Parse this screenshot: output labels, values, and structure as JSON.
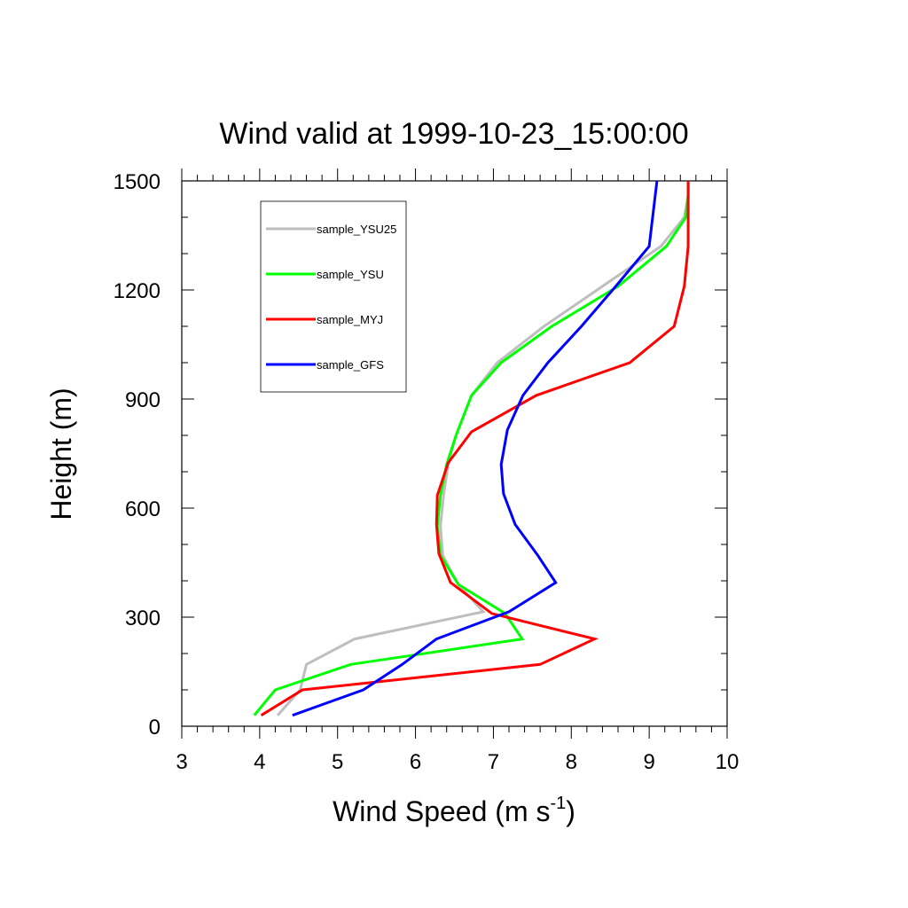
{
  "chart_data": {
    "type": "line",
    "title": "Wind valid at 1999-10-23_15:00:00",
    "xlabel": {
      "text": "Wind Speed (m s",
      "superscript": "-1",
      "close": ")"
    },
    "ylabel": "Height (m)",
    "xlim": [
      3,
      10
    ],
    "ylim": [
      0,
      1500
    ],
    "x_ticks": [
      3,
      4,
      5,
      6,
      7,
      8,
      9,
      10
    ],
    "y_ticks": [
      0,
      300,
      600,
      900,
      1200,
      1500
    ],
    "x_minor_step": 0.2,
    "y_minor_step": 100,
    "legend": {
      "position": "top-left"
    },
    "grid": false,
    "series": [
      {
        "name": "sample_YSU25",
        "color": "#bebebe",
        "x": [
          4.23,
          4.52,
          4.6,
          5.22,
          6.87,
          6.55,
          6.35,
          6.32,
          6.36,
          6.42,
          6.52,
          6.72,
          7.05,
          7.65,
          8.4,
          9.15,
          9.45,
          9.5,
          9.5
        ],
        "y": [
          30,
          100,
          170,
          240,
          315,
          390,
          470,
          550,
          635,
          720,
          800,
          910,
          1000,
          1100,
          1210,
          1320,
          1400,
          1460,
          1500
        ]
      },
      {
        "name": "sample_YSU",
        "color": "#00ff00",
        "x": [
          3.93,
          4.2,
          5.17,
          7.37,
          7.15,
          6.55,
          6.32,
          6.28,
          6.32,
          6.4,
          6.52,
          6.72,
          7.1,
          7.75,
          8.6,
          9.22,
          9.47,
          9.5,
          9.5
        ],
        "y": [
          30,
          100,
          170,
          240,
          310,
          390,
          470,
          550,
          635,
          720,
          800,
          910,
          1000,
          1100,
          1210,
          1320,
          1400,
          1460,
          1500
        ]
      },
      {
        "name": "sample_MYJ",
        "color": "#ff0000",
        "x": [
          4.02,
          4.55,
          7.6,
          8.3,
          6.98,
          6.45,
          6.3,
          6.27,
          6.28,
          6.42,
          6.72,
          7.55,
          8.75,
          9.32,
          9.45,
          9.5,
          9.5,
          9.5
        ],
        "y": [
          30,
          100,
          170,
          240,
          310,
          395,
          475,
          555,
          635,
          725,
          810,
          910,
          1000,
          1100,
          1210,
          1320,
          1400,
          1500
        ]
      },
      {
        "name": "sample_GFS",
        "color": "#0000ff",
        "x": [
          4.42,
          5.33,
          5.83,
          6.27,
          7.2,
          7.8,
          7.57,
          7.28,
          7.13,
          7.1,
          7.18,
          7.38,
          7.7,
          8.13,
          8.57,
          9.0,
          9.1
        ],
        "y": [
          30,
          100,
          170,
          240,
          315,
          395,
          470,
          555,
          640,
          720,
          815,
          910,
          1000,
          1100,
          1210,
          1320,
          1500
        ]
      }
    ]
  }
}
